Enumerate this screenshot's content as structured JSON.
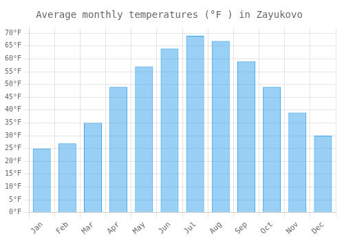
{
  "chart_data": {
    "type": "bar",
    "title": "Average monthly temperatures (°F ) in Zayukovo",
    "categories": [
      "Jan",
      "Feb",
      "Mar",
      "Apr",
      "May",
      "Jun",
      "Jul",
      "Aug",
      "Sep",
      "Oct",
      "Nov",
      "Dec"
    ],
    "values": [
      25,
      27,
      35,
      49,
      57,
      64,
      69,
      67,
      59,
      49,
      39,
      30
    ],
    "ylim": [
      0,
      72
    ],
    "yticks": [
      {
        "value": 0,
        "label": "0°F"
      },
      {
        "value": 5,
        "label": "5°F"
      },
      {
        "value": 10,
        "label": "10°F"
      },
      {
        "value": 15,
        "label": "15°F"
      },
      {
        "value": 20,
        "label": "20°F"
      },
      {
        "value": 25,
        "label": "25°F"
      },
      {
        "value": 30,
        "label": "30°F"
      },
      {
        "value": 35,
        "label": "35°F"
      },
      {
        "value": 40,
        "label": "40°F"
      },
      {
        "value": 45,
        "label": "45°F"
      },
      {
        "value": 50,
        "label": "50°F"
      },
      {
        "value": 55,
        "label": "55°F"
      },
      {
        "value": 60,
        "label": "60°F"
      },
      {
        "value": 65,
        "label": "65°F"
      },
      {
        "value": 70,
        "label": "70°F"
      }
    ],
    "grid": true
  }
}
